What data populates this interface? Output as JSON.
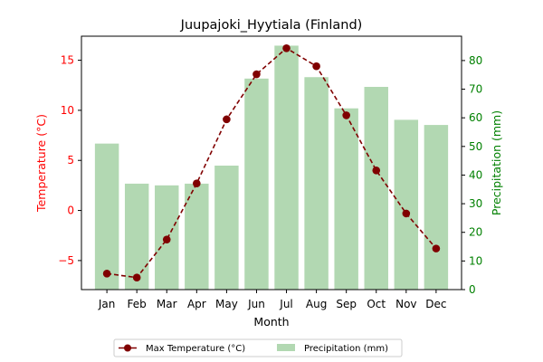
{
  "chart_data": {
    "type": "bar+line",
    "title": "Juupajoki_Hyytiala (Finland)",
    "xlabel": "Month",
    "categories": [
      "Jan",
      "Feb",
      "Mar",
      "Apr",
      "May",
      "Jun",
      "Jul",
      "Aug",
      "Sep",
      "Oct",
      "Nov",
      "Dec"
    ],
    "left_axis": {
      "label": "Temperature (°C)",
      "color": "#ff0000",
      "ylim": [
        -7.9,
        17.4
      ],
      "ticks": [
        -5,
        0,
        5,
        10,
        15
      ]
    },
    "right_axis": {
      "label": "Precipitation (mm)",
      "color": "#008000",
      "ylim": [
        0,
        88.5
      ],
      "ticks": [
        0,
        10,
        20,
        30,
        40,
        50,
        60,
        70,
        80
      ]
    },
    "series": [
      {
        "name": "Max Temperature (°C)",
        "type": "line",
        "axis": "left",
        "color": "#800000",
        "style": "dashed",
        "marker": "circle",
        "values": [
          -6.3,
          -6.7,
          -2.9,
          2.7,
          9.1,
          13.6,
          16.2,
          14.4,
          9.5,
          4.0,
          -0.3,
          -3.8
        ]
      },
      {
        "name": "Precipitation (mm)",
        "type": "bar",
        "axis": "right",
        "color": "#b2d8b2",
        "values": [
          51.0,
          37.0,
          36.4,
          37.0,
          43.3,
          73.7,
          85.2,
          74.2,
          63.3,
          70.8,
          59.3,
          57.5
        ]
      }
    ],
    "legend": {
      "placement": "bottom-center",
      "columns": 2
    },
    "grid": false
  }
}
